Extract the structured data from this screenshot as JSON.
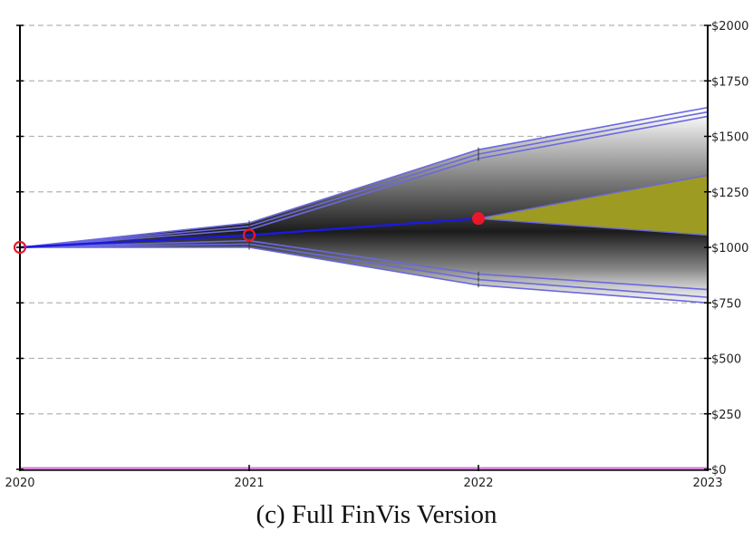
{
  "caption": "(c) Full FinVis Version",
  "chart_data": {
    "type": "line",
    "x_ticks": [
      "2020",
      "2021",
      "2022",
      "2023"
    ],
    "y_ticks": [
      "$0",
      "$250",
      "$500",
      "$750",
      "$1000",
      "$1250",
      "$1500",
      "$1750",
      "$2000"
    ],
    "ylim": [
      0,
      2000
    ],
    "xlim": [
      2020,
      2023
    ],
    "y_axis_side": "right",
    "grid": "horizontal dashed",
    "series": [
      {
        "role": "expected",
        "x": [
          2020,
          2021,
          2022
        ],
        "y": [
          1000,
          1055,
          1130
        ]
      },
      {
        "role": "upper_band_1",
        "x": [
          2020,
          2021,
          2022,
          2023
        ],
        "y": [
          1000,
          1110,
          1440,
          1630
        ]
      },
      {
        "role": "upper_band_2",
        "x": [
          2020,
          2021,
          2022,
          2023
        ],
        "y": [
          1000,
          1095,
          1420,
          1610
        ]
      },
      {
        "role": "upper_band_3",
        "x": [
          2020,
          2021,
          2022,
          2023
        ],
        "y": [
          1000,
          1080,
          1400,
          1590
        ]
      },
      {
        "role": "lower_band_1",
        "x": [
          2020,
          2021,
          2022,
          2023
        ],
        "y": [
          1000,
          1030,
          880,
          810
        ]
      },
      {
        "role": "lower_band_2",
        "x": [
          2020,
          2021,
          2022,
          2023
        ],
        "y": [
          1000,
          1015,
          855,
          775
        ]
      },
      {
        "role": "lower_band_3",
        "x": [
          2020,
          2021,
          2022,
          2023
        ],
        "y": [
          1000,
          1000,
          830,
          750
        ]
      }
    ],
    "highlight_range": {
      "x": [
        2022,
        2023
      ],
      "upper": [
        1130,
        1325
      ],
      "lower": [
        1130,
        1055
      ]
    },
    "baseline": 0,
    "points": [
      {
        "x": 2020,
        "y": 1000,
        "style": "hollow"
      },
      {
        "x": 2021,
        "y": 1055,
        "style": "hollow"
      },
      {
        "x": 2022,
        "y": 1130,
        "style": "filled"
      }
    ],
    "colors": {
      "band_line": "#6a68e0",
      "expected_line": "#1a1ae0",
      "highlight_fill": "#9e9b22",
      "point": "#e8182a",
      "grid": "#b4b4b4",
      "baseline": "#d080d8",
      "axis": "#000000"
    }
  }
}
